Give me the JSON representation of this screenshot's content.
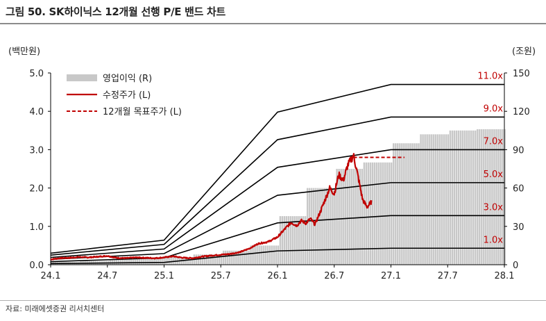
{
  "title": "그림 50. SK하이닉스 12개월 선행 P/E 밴드 차트",
  "source": "자료: 미래에셋증권 리서치센터",
  "colors": {
    "bars": "#c8c8c8",
    "price": "#c00000",
    "target": "#c00000",
    "bands": "#000000",
    "band_labels": "#c00000"
  },
  "chart_data": {
    "type": "line",
    "left_axis": {
      "unit_label": "(백만원)",
      "ylim": [
        0,
        5.0
      ],
      "ticks": [
        "0.0",
        "1.0",
        "2.0",
        "3.0",
        "4.0",
        "5.0"
      ]
    },
    "right_axis": {
      "unit_label": "(조원)",
      "ylim": [
        0,
        150
      ],
      "ticks": [
        "0",
        "30",
        "60",
        "90",
        "120",
        "150"
      ]
    },
    "x_ticks": [
      "24.1",
      "24.7",
      "25.1",
      "25.7",
      "26.1",
      "26.7",
      "27.1",
      "27.7",
      "28.1"
    ],
    "xlim": [
      2024.0,
      2028.0
    ],
    "legend": [
      {
        "label": "영업이익 (R)",
        "style": "bar"
      },
      {
        "label": "수정주가 (L)",
        "style": "line"
      },
      {
        "label": "12개월 목표주가 (L)",
        "style": "dashed"
      }
    ],
    "operating_profit_trillion_krw": {
      "x": [
        2024.0,
        2024.25,
        2024.5,
        2024.75,
        2025.0,
        2025.25,
        2025.5,
        2025.75,
        2026.0,
        2026.25,
        2026.5,
        2026.75,
        2027.0,
        2027.25,
        2027.5,
        2027.75
      ],
      "values": [
        2,
        3,
        4,
        5,
        6,
        8,
        11,
        15,
        38,
        60,
        75,
        80,
        95,
        102,
        105,
        106
      ]
    },
    "pe_bands": [
      {
        "label": "11.0x",
        "x": [
          2024.0,
          2025.0,
          2026.0,
          2027.0,
          2028.0
        ],
        "values": [
          0.3,
          0.64,
          3.98,
          4.7,
          4.7
        ]
      },
      {
        "label": "9.0x",
        "x": [
          2024.0,
          2025.0,
          2026.0,
          2027.0,
          2028.0
        ],
        "values": [
          0.25,
          0.53,
          3.26,
          3.85,
          3.85
        ]
      },
      {
        "label": "7.0x",
        "x": [
          2024.0,
          2025.0,
          2026.0,
          2027.0,
          2028.0
        ],
        "values": [
          0.19,
          0.41,
          2.54,
          3.0,
          3.0
        ]
      },
      {
        "label": "5.0x",
        "x": [
          2024.0,
          2025.0,
          2026.0,
          2027.0,
          2028.0
        ],
        "values": [
          0.14,
          0.29,
          1.81,
          2.14,
          2.14
        ]
      },
      {
        "label": "3.0x",
        "x": [
          2024.0,
          2025.0,
          2026.0,
          2027.0,
          2028.0
        ],
        "values": [
          0.08,
          0.18,
          1.09,
          1.28,
          1.28
        ]
      },
      {
        "label": "1.0x",
        "x": [
          2024.0,
          2025.0,
          2026.0,
          2027.0,
          2028.0
        ],
        "values": [
          0.03,
          0.06,
          0.36,
          0.43,
          0.43
        ]
      }
    ],
    "adjusted_price_million_krw": {
      "x": [
        2024.0,
        2024.08,
        2024.17,
        2024.25,
        2024.33,
        2024.42,
        2024.5,
        2024.58,
        2024.67,
        2024.75,
        2024.83,
        2024.92,
        2025.0,
        2025.08,
        2025.17,
        2025.25,
        2025.33,
        2025.42,
        2025.5,
        2025.58,
        2025.67,
        2025.75,
        2025.83,
        2025.92,
        2026.0,
        2026.04,
        2026.08,
        2026.12,
        2026.17,
        2026.21,
        2026.25,
        2026.29,
        2026.33,
        2026.38,
        2026.42,
        2026.46,
        2026.5,
        2026.54,
        2026.58,
        2026.62,
        2026.67,
        2026.71,
        2026.75,
        2026.79,
        2026.83
      ],
      "values": [
        0.14,
        0.17,
        0.18,
        0.2,
        0.19,
        0.21,
        0.23,
        0.18,
        0.17,
        0.19,
        0.18,
        0.17,
        0.19,
        0.22,
        0.18,
        0.17,
        0.21,
        0.24,
        0.26,
        0.28,
        0.33,
        0.42,
        0.55,
        0.6,
        0.72,
        0.85,
        0.98,
        1.1,
        1.02,
        1.15,
        1.08,
        1.2,
        1.05,
        1.4,
        1.7,
        2.0,
        1.85,
        2.35,
        2.2,
        2.6,
        2.85,
        2.3,
        1.7,
        1.5,
        1.65
      ]
    },
    "target_price_million_krw": {
      "x": [
        2026.67,
        2027.12
      ],
      "values": [
        2.8,
        2.8
      ]
    }
  }
}
